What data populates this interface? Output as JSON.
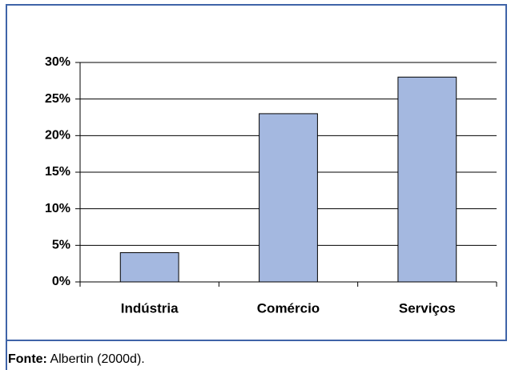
{
  "chart_data": {
    "type": "bar",
    "categories": [
      "Indústria",
      "Comércio",
      "Serviços"
    ],
    "values": [
      4,
      23,
      28
    ],
    "color": "#a4b8e0",
    "ylim": [
      0,
      30
    ],
    "yticks": [
      {
        "value": 0,
        "label": "0%"
      },
      {
        "value": 5,
        "label": "5%"
      },
      {
        "value": 10,
        "label": "10%"
      },
      {
        "value": 15,
        "label": "15%"
      },
      {
        "value": 20,
        "label": "20%"
      },
      {
        "value": 25,
        "label": "25%"
      },
      {
        "value": 30,
        "label": "30%"
      }
    ],
    "grid": true
  },
  "caption": {
    "label": "Fonte:",
    "text": "Albertin (2000d)."
  }
}
